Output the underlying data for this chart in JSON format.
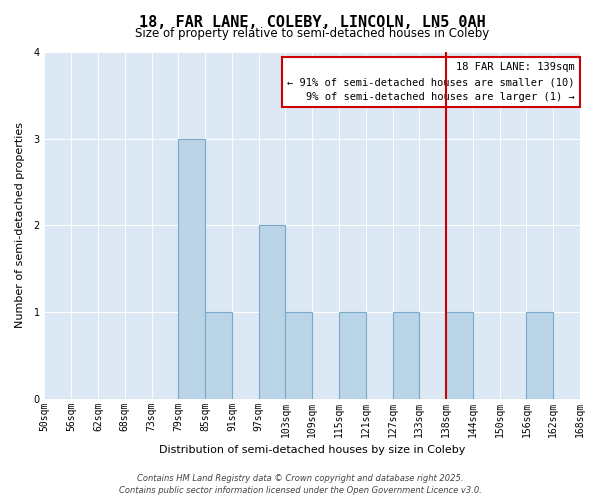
{
  "title": "18, FAR LANE, COLEBY, LINCOLN, LN5 0AH",
  "subtitle": "Size of property relative to semi-detached houses in Coleby",
  "xlabel": "Distribution of semi-detached houses by size in Coleby",
  "ylabel": "Number of semi-detached properties",
  "footnote1": "Contains HM Land Registry data © Crown copyright and database right 2025.",
  "footnote2": "Contains public sector information licensed under the Open Government Licence v3.0.",
  "bin_labels": [
    "50sqm",
    "56sqm",
    "62sqm",
    "68sqm",
    "73sqm",
    "79sqm",
    "85sqm",
    "91sqm",
    "97sqm",
    "103sqm",
    "109sqm",
    "115sqm",
    "121sqm",
    "127sqm",
    "133sqm",
    "138sqm",
    "144sqm",
    "150sqm",
    "156sqm",
    "162sqm",
    "168sqm"
  ],
  "counts": [
    0,
    0,
    0,
    0,
    0,
    3,
    1,
    0,
    2,
    1,
    0,
    1,
    0,
    1,
    0,
    1,
    0,
    0,
    1,
    0
  ],
  "bar_color": "#bad4e8",
  "bar_edge_color": "#7aaac8",
  "vline_color": "#cc0000",
  "vline_bin_index": 15,
  "legend_title": "18 FAR LANE: 139sqm",
  "legend_line1": "← 91% of semi-detached houses are smaller (10)",
  "legend_line2": "9% of semi-detached houses are larger (1) →",
  "legend_box_color": "#cc0000",
  "background_color": "#dce8f4",
  "grid_color": "#ffffff",
  "ylim": [
    0,
    4
  ],
  "yticks": [
    0,
    1,
    2,
    3,
    4
  ],
  "title_fontsize": 11,
  "subtitle_fontsize": 8.5,
  "tick_fontsize": 7,
  "axis_label_fontsize": 8,
  "footnote_fontsize": 6,
  "legend_fontsize": 7.5
}
